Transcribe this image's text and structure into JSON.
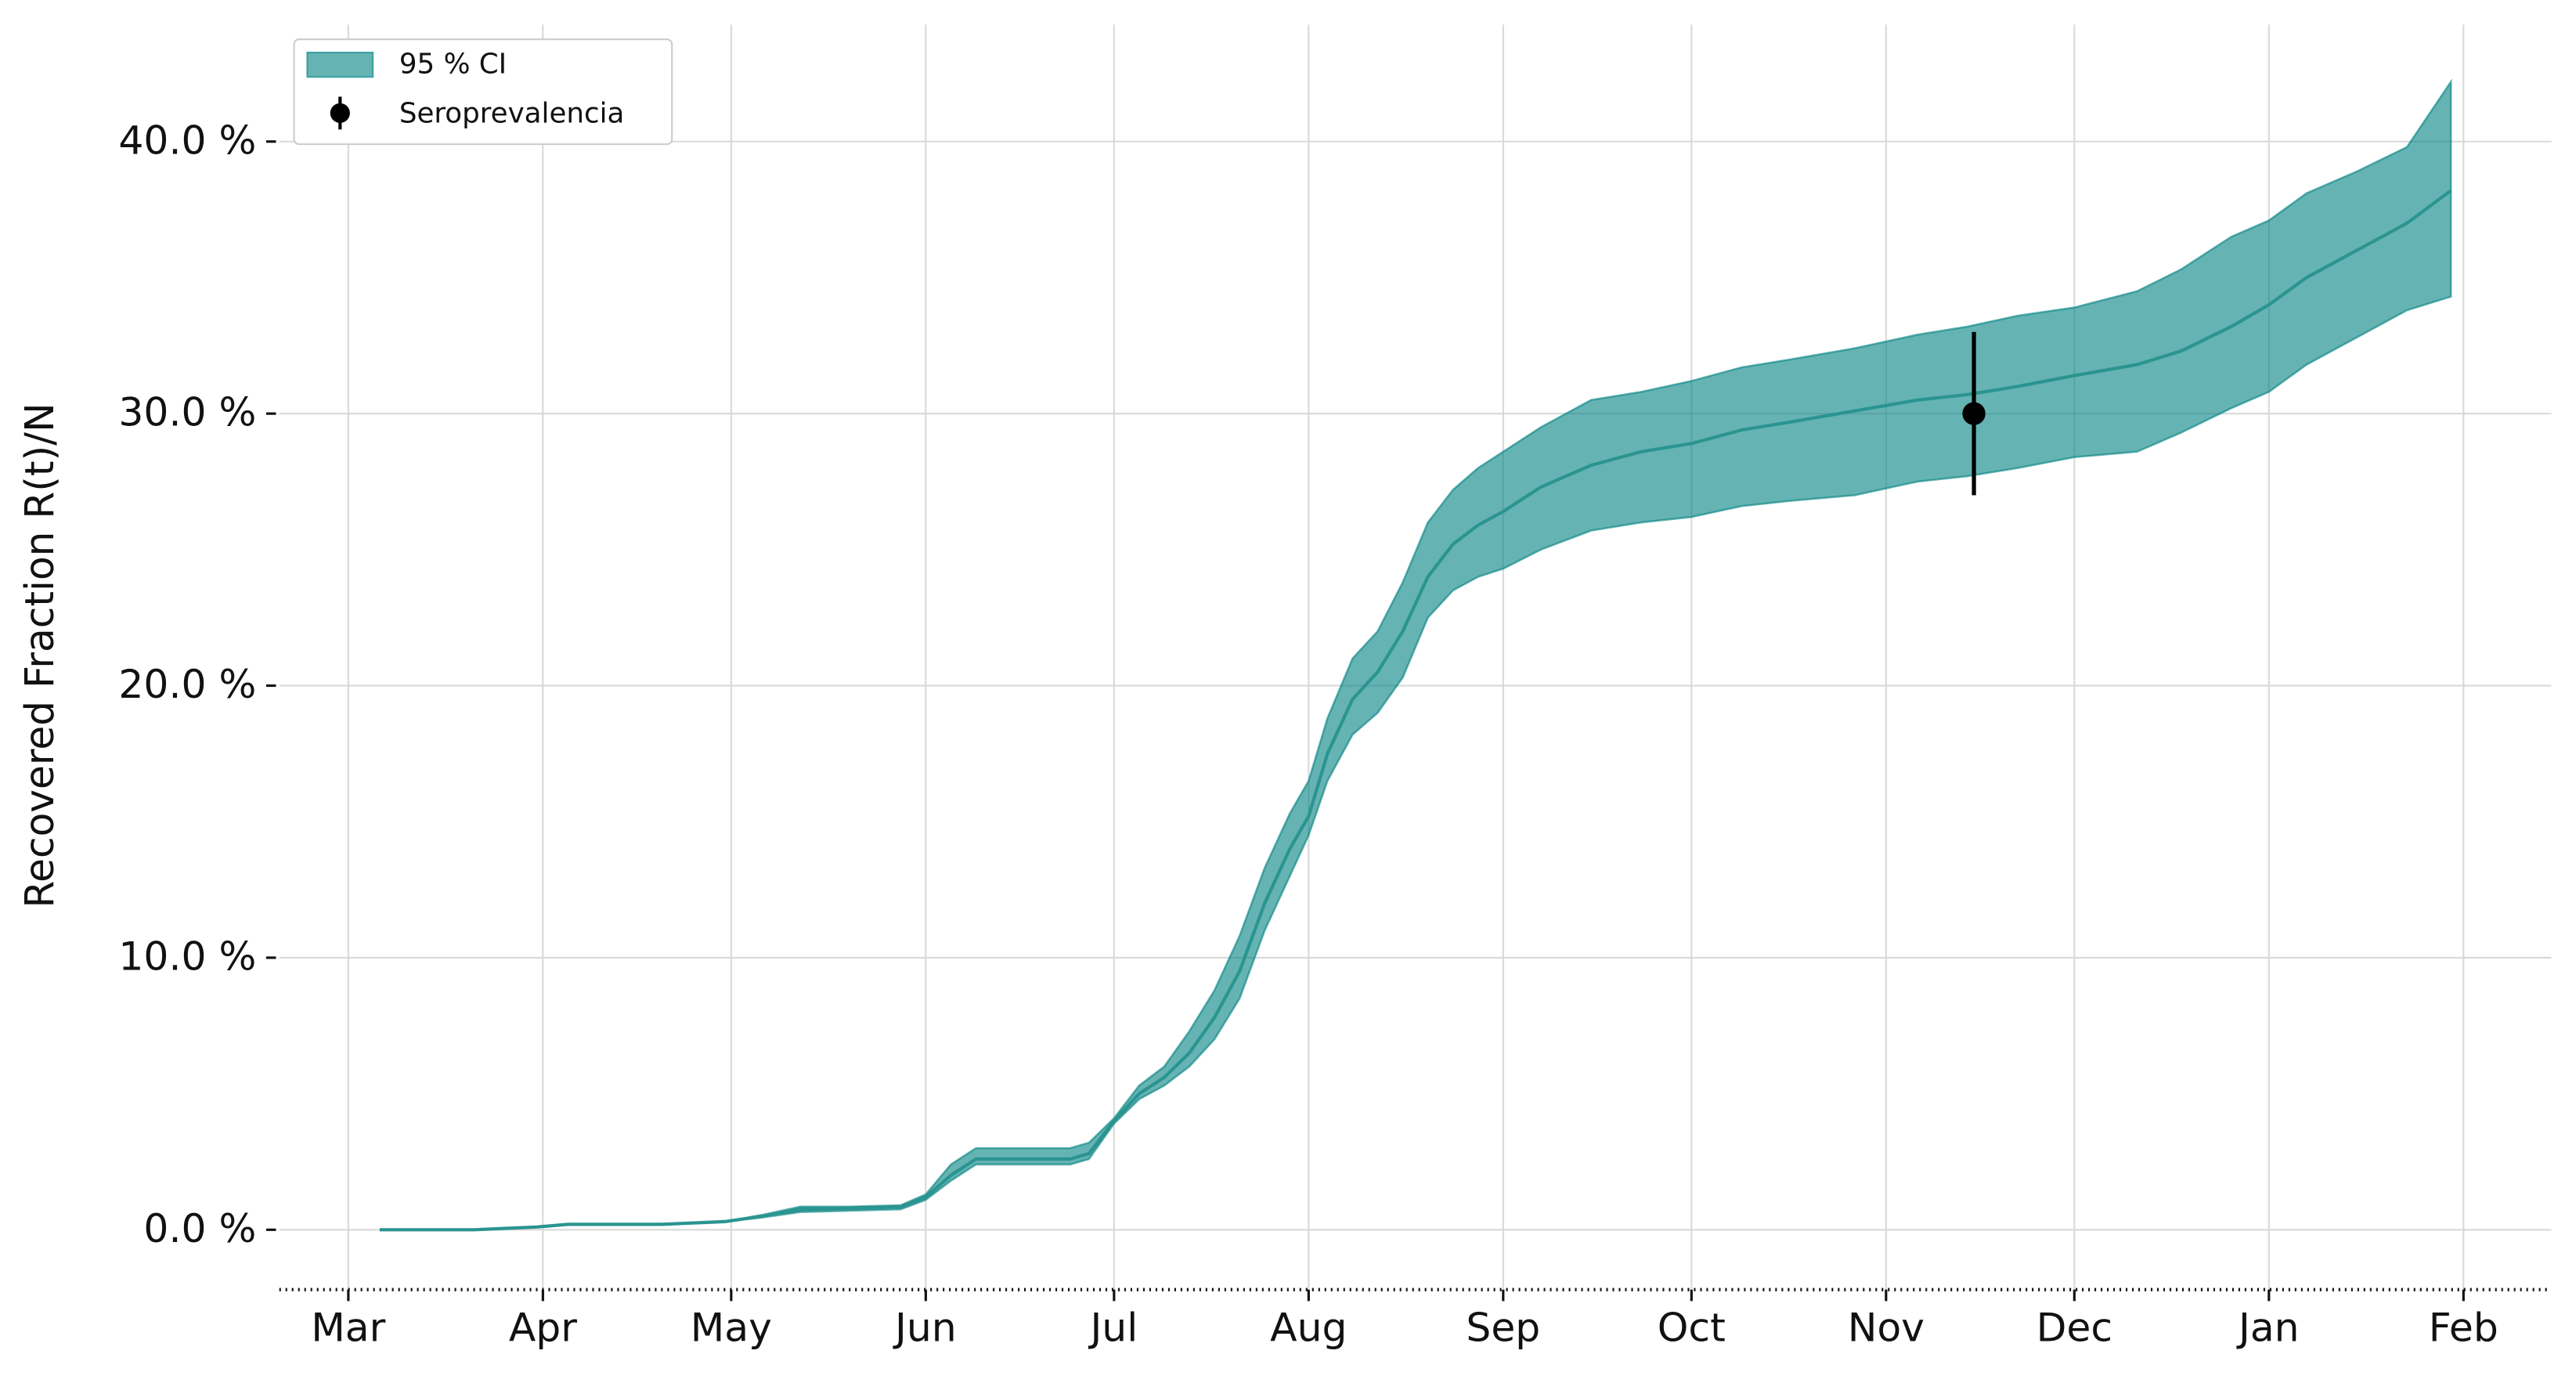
{
  "chart_data": {
    "type": "band_line",
    "ylabel": "Recovered Fraction R(t)/N",
    "xlim": [
      -11,
      351
    ],
    "xticks": [
      {
        "value": 0,
        "label": "Mar"
      },
      {
        "value": 31,
        "label": "Apr"
      },
      {
        "value": 61,
        "label": "May"
      },
      {
        "value": 92,
        "label": "Jun"
      },
      {
        "value": 122,
        "label": "Jul"
      },
      {
        "value": 153,
        "label": "Aug"
      },
      {
        "value": 184,
        "label": "Sep"
      },
      {
        "value": 214,
        "label": "Oct"
      },
      {
        "value": 245,
        "label": "Nov"
      },
      {
        "value": 275,
        "label": "Dec"
      },
      {
        "value": 306,
        "label": "Jan"
      },
      {
        "value": 337,
        "label": "Feb"
      }
    ],
    "ylim": [
      -2.2,
      44.3
    ],
    "yticks": [
      {
        "value": 0,
        "label": "0.0 %"
      },
      {
        "value": 10,
        "label": "10.0 %"
      },
      {
        "value": 20,
        "label": "20.0 %"
      },
      {
        "value": 30,
        "label": "30.0 %"
      },
      {
        "value": 40,
        "label": "40.0 %"
      }
    ],
    "grid": true,
    "legend_position": "upper-left",
    "x": [
      5,
      20,
      30,
      35,
      50,
      60,
      66,
      72,
      80,
      88,
      92,
      96,
      100,
      105,
      115,
      118,
      122,
      126,
      130,
      134,
      138,
      142,
      146,
      150,
      153,
      156,
      160,
      164,
      168,
      172,
      176,
      180,
      184,
      190,
      198,
      206,
      214,
      222,
      230,
      240,
      250,
      258,
      266,
      275,
      285,
      292,
      300,
      306,
      312,
      320,
      328,
      335
    ],
    "band": {
      "name": "95 % CI",
      "color": "#008080",
      "lower": [
        0,
        0,
        0.1,
        0.2,
        0.2,
        0.3,
        0.45,
        0.65,
        0.7,
        0.75,
        1.1,
        1.8,
        2.4,
        2.4,
        2.4,
        2.6,
        3.9,
        4.8,
        5.3,
        6.0,
        7.0,
        8.5,
        11.0,
        13.0,
        14.5,
        16.5,
        18.2,
        19.0,
        20.3,
        22.5,
        23.5,
        24.0,
        24.3,
        25.0,
        25.7,
        26.0,
        26.2,
        26.6,
        26.8,
        27.0,
        27.5,
        27.7,
        28.0,
        28.4,
        28.6,
        29.3,
        30.2,
        30.8,
        31.8,
        32.8,
        33.8,
        34.3
      ],
      "upper": [
        0,
        0,
        0.1,
        0.2,
        0.2,
        0.3,
        0.55,
        0.85,
        0.85,
        0.9,
        1.3,
        2.4,
        3.0,
        3.0,
        3.0,
        3.2,
        4.1,
        5.3,
        6.0,
        7.3,
        8.8,
        10.8,
        13.3,
        15.3,
        16.5,
        18.8,
        21.0,
        22.0,
        23.8,
        26.0,
        27.2,
        28.0,
        28.6,
        29.5,
        30.5,
        30.8,
        31.2,
        31.7,
        32.0,
        32.4,
        32.9,
        33.2,
        33.6,
        33.9,
        34.5,
        35.3,
        36.5,
        37.1,
        38.1,
        38.9,
        39.8,
        42.2
      ]
    },
    "line": {
      "color": "#2a9490",
      "values": [
        0,
        0,
        0.1,
        0.2,
        0.2,
        0.3,
        0.5,
        0.75,
        0.8,
        0.85,
        1.2,
        2.0,
        2.6,
        2.6,
        2.6,
        2.8,
        4.0,
        5.0,
        5.6,
        6.5,
        7.8,
        9.5,
        12.0,
        14.0,
        15.2,
        17.5,
        19.5,
        20.5,
        22.0,
        24.0,
        25.2,
        25.9,
        26.4,
        27.3,
        28.1,
        28.6,
        28.9,
        29.4,
        29.7,
        30.1,
        30.5,
        30.7,
        31.0,
        31.4,
        31.8,
        32.3,
        33.2,
        34.0,
        35.0,
        36.0,
        37.0,
        38.2
      ]
    },
    "points": {
      "name": "Seroprevalencia",
      "color": "#000000",
      "x": [
        259
      ],
      "values": [
        30
      ],
      "errors": [
        3
      ]
    }
  }
}
